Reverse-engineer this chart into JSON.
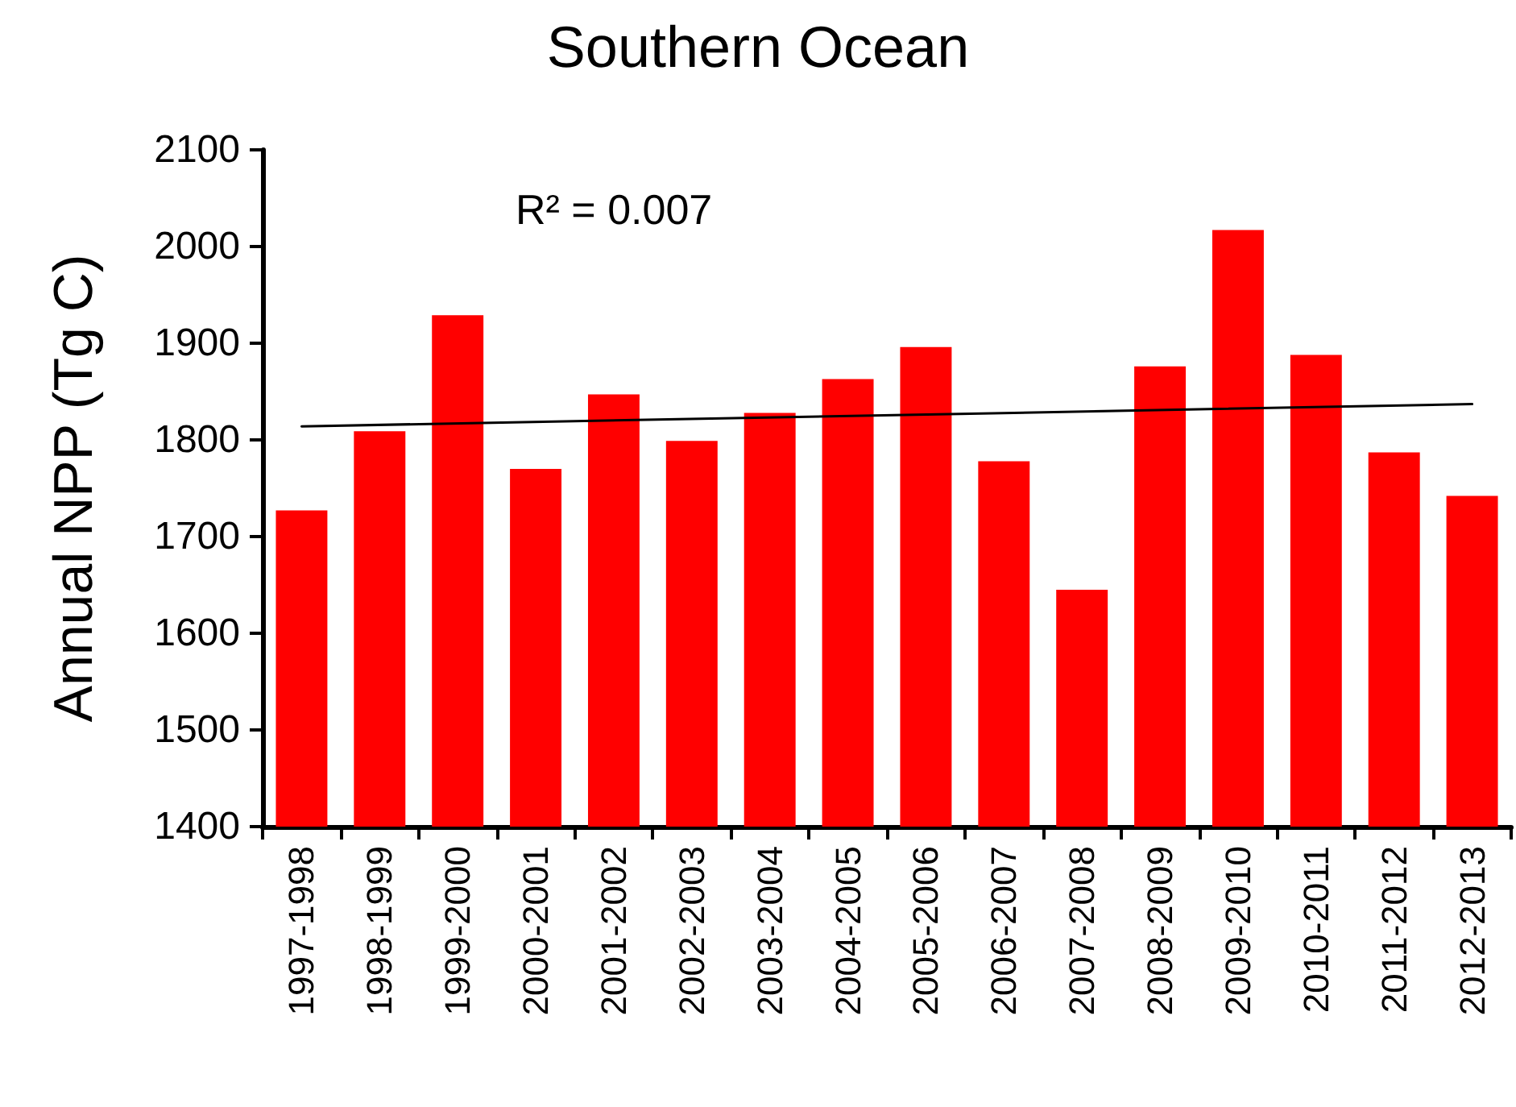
{
  "chart_data": {
    "type": "bar",
    "title": "Southern Ocean",
    "ylabel": "Annual NPP (Tg C)",
    "categories": [
      "1997-1998",
      "1998-1999",
      "1999-2000",
      "2000-2001",
      "2001-2002",
      "2002-2003",
      "2003-2004",
      "2004-2005",
      "2005-2006",
      "2006-2007",
      "2007-2008",
      "2008-2009",
      "2009-2010",
      "2010-2011",
      "2011-2012",
      "2012-2013"
    ],
    "series": [
      {
        "color": "#ff0000",
        "values": [
          1727,
          1809,
          1929,
          1770,
          1847,
          1799,
          1828,
          1863,
          1896,
          1778,
          1645,
          1876,
          2017,
          1888,
          1787,
          1742
        ]
      },
      {
        "type": "line",
        "color": "#000000",
        "x": [
          "1997-1998",
          "2012-2013"
        ],
        "values": [
          1814,
          1837
        ]
      }
    ],
    "ylim": [
      1400,
      2100
    ],
    "yticks": [
      1400,
      1500,
      1600,
      1700,
      1800,
      1900,
      2000,
      2100
    ],
    "annotations": [
      "R² = 0.007"
    ],
    "grid": false
  }
}
